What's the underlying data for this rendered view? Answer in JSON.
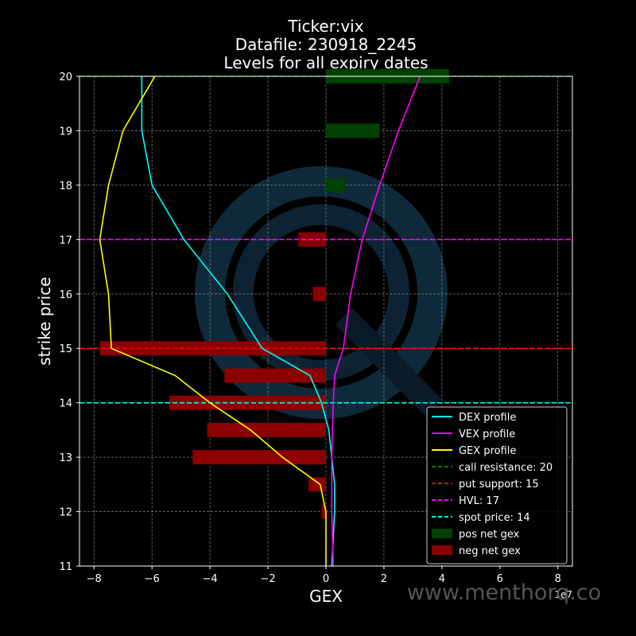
{
  "chart_data": {
    "type": "bar",
    "title_lines": [
      "Ticker:vix",
      "Datafile: 230918_2245",
      "Levels for all expiry dates"
    ],
    "xlabel": "GEX",
    "ylabel": "strike price",
    "x_multiplier_label": "1e7",
    "xlim": [
      -8.5,
      8.5
    ],
    "ylim": [
      11,
      20
    ],
    "x_ticks": [
      -8,
      -6,
      -4,
      -2,
      0,
      2,
      4,
      6,
      8
    ],
    "y_ticks": [
      11,
      12,
      13,
      14,
      15,
      16,
      17,
      18,
      19,
      20
    ],
    "grid": true,
    "legend_position": "lower-right",
    "watermark_text": "www.menthorq.co",
    "colors": {
      "dex": "#00ffff",
      "vex": "#ff00ff",
      "gex": "#ffff00",
      "call_resistance": "#008000",
      "put_support": "#ff0000",
      "hvl": "#ff00ff",
      "spot": "#00ffff",
      "pos_bar": "#004000",
      "neg_bar": "#8b0000"
    },
    "bars": [
      {
        "strike": 20,
        "value": 4.25
      },
      {
        "strike": 19,
        "value": 1.85
      },
      {
        "strike": 18,
        "value": 0.65
      },
      {
        "strike": 17,
        "value": -0.95
      },
      {
        "strike": 16,
        "value": -0.45
      },
      {
        "strike": 15,
        "value": -7.8
      },
      {
        "strike": 14.5,
        "value": -3.5
      },
      {
        "strike": 14,
        "value": -5.4
      },
      {
        "strike": 13.5,
        "value": -4.1
      },
      {
        "strike": 13,
        "value": -4.6
      },
      {
        "strike": 12.5,
        "value": -0.6
      },
      {
        "strike": 12,
        "value": -0.15
      }
    ],
    "series": [
      {
        "name": "DEX profile",
        "key": "dex",
        "points": [
          [
            -6.35,
            20
          ],
          [
            -6.35,
            19.5
          ],
          [
            -6.35,
            19
          ],
          [
            -6.0,
            18
          ],
          [
            -4.9,
            17
          ],
          [
            -3.4,
            16
          ],
          [
            -2.2,
            15
          ],
          [
            -0.55,
            14.5
          ],
          [
            -0.15,
            14
          ],
          [
            0.1,
            13.5
          ],
          [
            0.2,
            13
          ],
          [
            0.3,
            12.5
          ],
          [
            0.3,
            12
          ],
          [
            0.25,
            11.5
          ],
          [
            0.2,
            11
          ]
        ]
      },
      {
        "name": "VEX profile",
        "key": "vex",
        "points": [
          [
            0.25,
            11
          ],
          [
            0.2,
            12
          ],
          [
            0.2,
            13
          ],
          [
            0.25,
            14
          ],
          [
            0.3,
            14.5
          ],
          [
            0.6,
            15
          ],
          [
            0.85,
            16
          ],
          [
            1.25,
            17
          ],
          [
            1.85,
            18
          ],
          [
            2.5,
            19
          ],
          [
            3.25,
            20
          ]
        ]
      },
      {
        "name": "GEX profile",
        "key": "gex",
        "points": [
          [
            -5.9,
            20
          ],
          [
            -7.0,
            19
          ],
          [
            -7.5,
            18
          ],
          [
            -7.8,
            17
          ],
          [
            -7.5,
            16
          ],
          [
            -7.4,
            15
          ],
          [
            -5.2,
            14.5
          ],
          [
            -4.0,
            14
          ],
          [
            -2.6,
            13.5
          ],
          [
            -1.5,
            13
          ],
          [
            -0.2,
            12.5
          ],
          [
            0,
            12
          ],
          [
            0,
            11
          ]
        ]
      }
    ],
    "levels": [
      {
        "name": "call resistance: 20",
        "value": 20,
        "key": "call_resistance"
      },
      {
        "name": "put support: 15",
        "value": 15,
        "key": "put_support"
      },
      {
        "name": "HVL: 17",
        "value": 17,
        "key": "hvl"
      },
      {
        "name": "spot price: 14",
        "value": 14,
        "key": "spot"
      }
    ],
    "legend_entries": [
      {
        "label": "DEX profile",
        "kind": "line",
        "key": "dex"
      },
      {
        "label": "VEX profile",
        "kind": "line",
        "key": "vex"
      },
      {
        "label": "GEX profile",
        "kind": "line",
        "key": "gex"
      },
      {
        "label": "call resistance: 20",
        "kind": "dash",
        "key": "call_resistance"
      },
      {
        "label": "put support: 15",
        "kind": "dash",
        "key": "put_support"
      },
      {
        "label": "HVL: 17",
        "kind": "dash",
        "key": "hvl"
      },
      {
        "label": "spot price: 14",
        "kind": "dash",
        "key": "spot"
      },
      {
        "label": "pos net gex",
        "kind": "patch",
        "key": "pos_bar"
      },
      {
        "label": "neg net gex",
        "kind": "patch",
        "key": "neg_bar"
      }
    ]
  }
}
